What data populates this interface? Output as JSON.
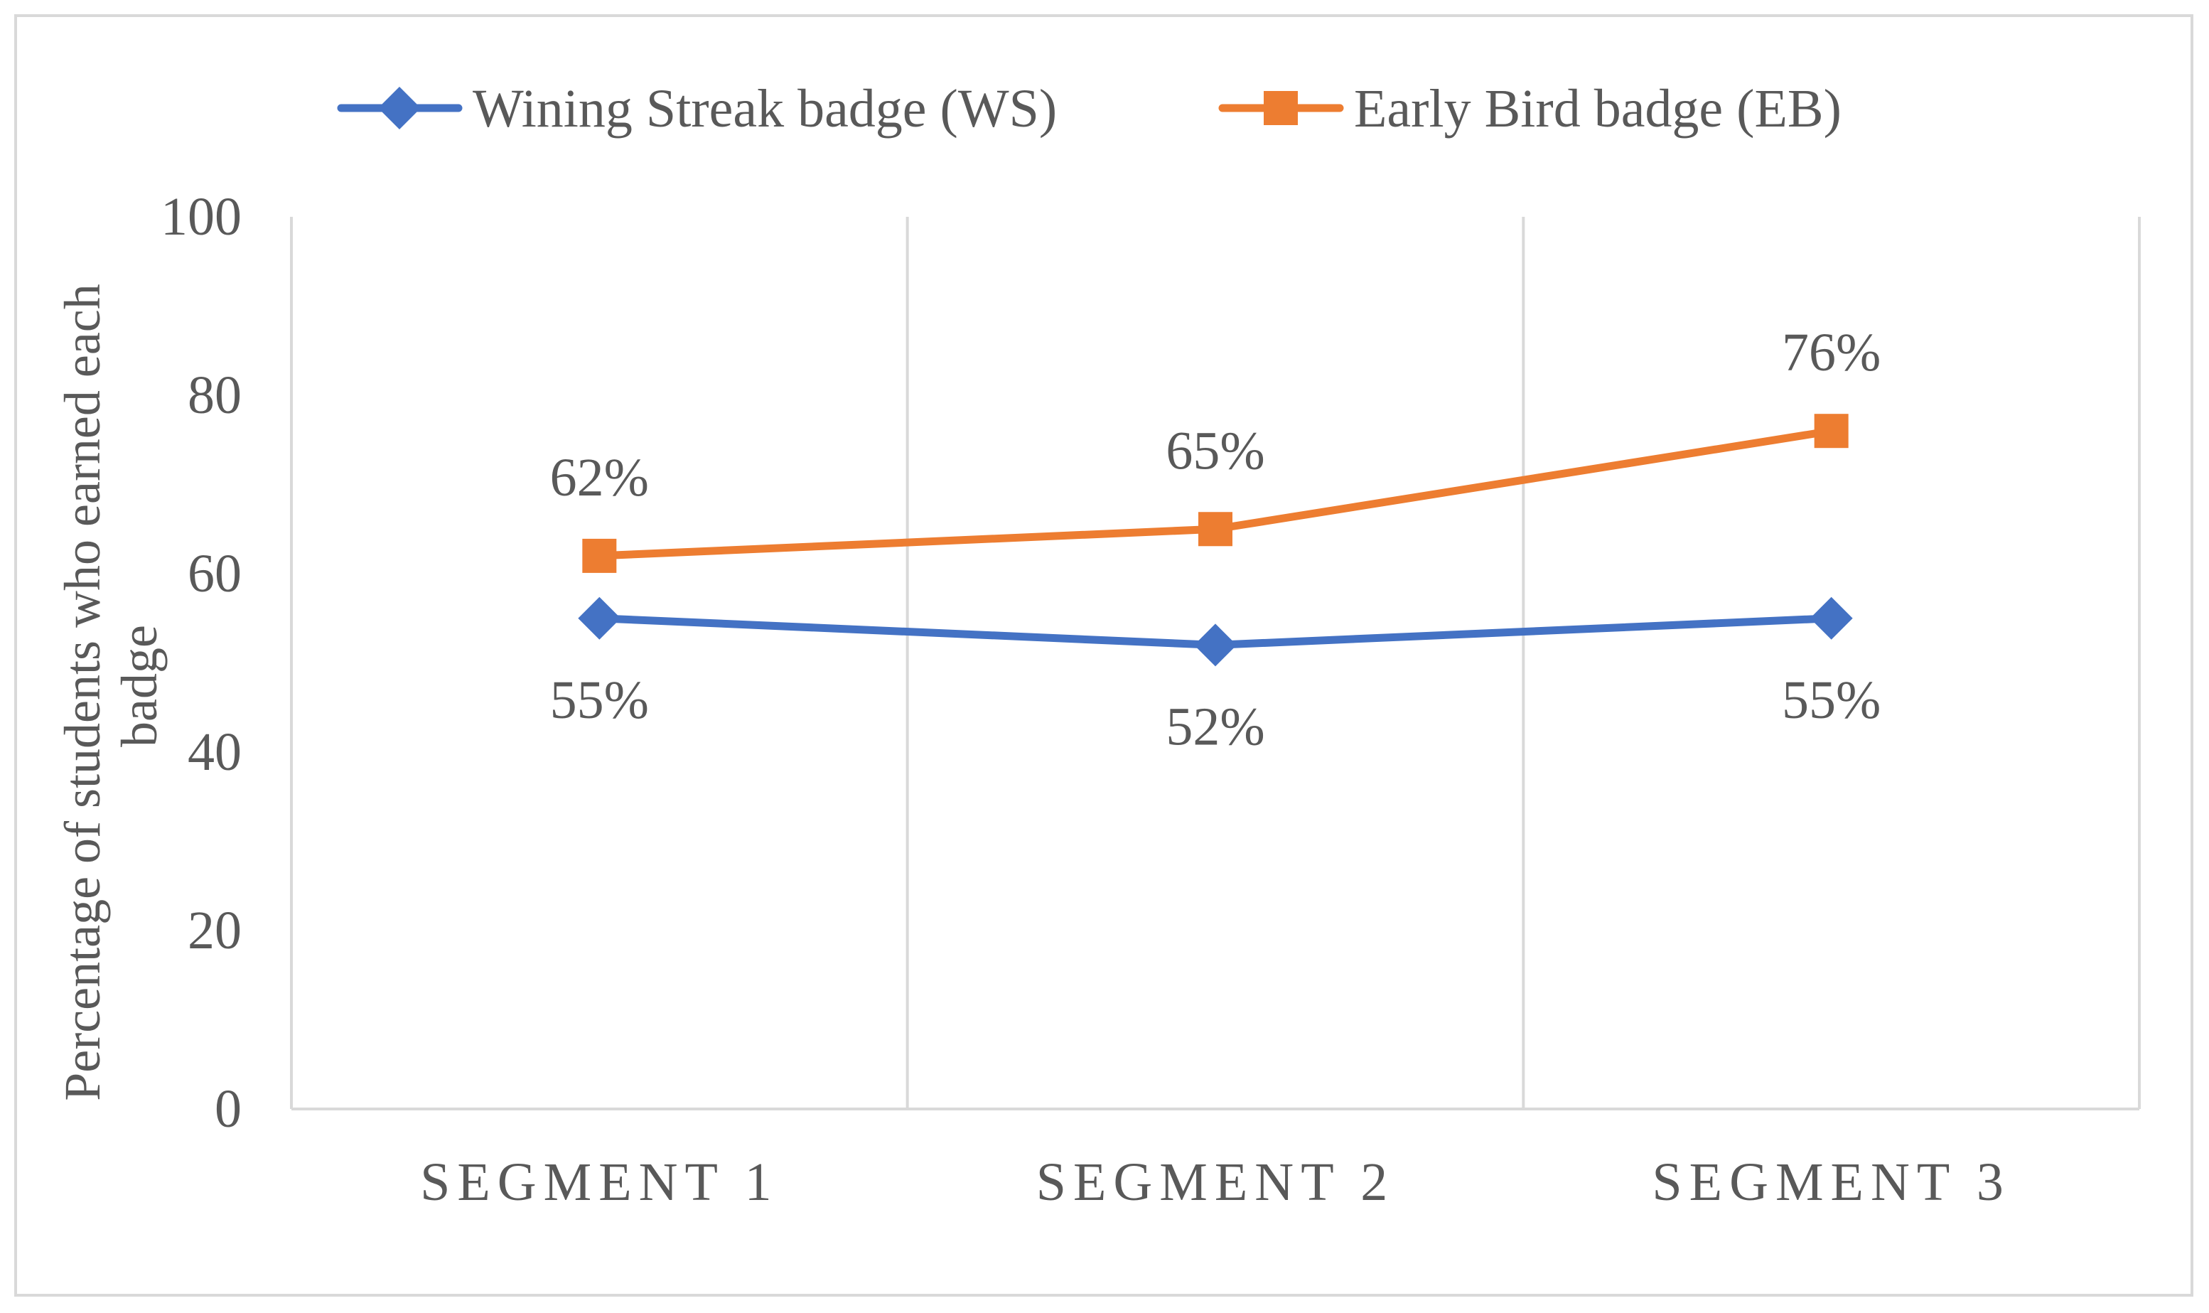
{
  "chart_data": {
    "type": "line",
    "title": "",
    "categories": [
      "SEGMENT 1",
      "SEGMENT 2",
      "SEGMENT 3"
    ],
    "series": [
      {
        "name": "Wining Streak badge (WS)",
        "values": [
          55,
          52,
          55
        ],
        "labels": [
          "55%",
          "52%",
          "55%"
        ],
        "color": "#4472C4",
        "marker": "diamond",
        "label_position": "below"
      },
      {
        "name": "Early Bird badge (EB)",
        "values": [
          62,
          65,
          76
        ],
        "labels": [
          "62%",
          "65%",
          "76%"
        ],
        "color": "#ED7D31",
        "marker": "square",
        "label_position": "above"
      }
    ],
    "xlabel": "",
    "ylabel_lines": [
      "Percentage of  students who earned each",
      "badge"
    ],
    "ylim": [
      0,
      100
    ],
    "yticks": [
      0,
      20,
      40,
      60,
      80,
      100
    ],
    "ytick_labels": [
      "0",
      "20",
      "40",
      "60",
      "80",
      "100"
    ],
    "grid": "vertical",
    "legend_position": "top-center",
    "colors": {
      "gridline": "#D9D9D9",
      "text": "#595959",
      "frame": "#D9D9D9"
    }
  }
}
